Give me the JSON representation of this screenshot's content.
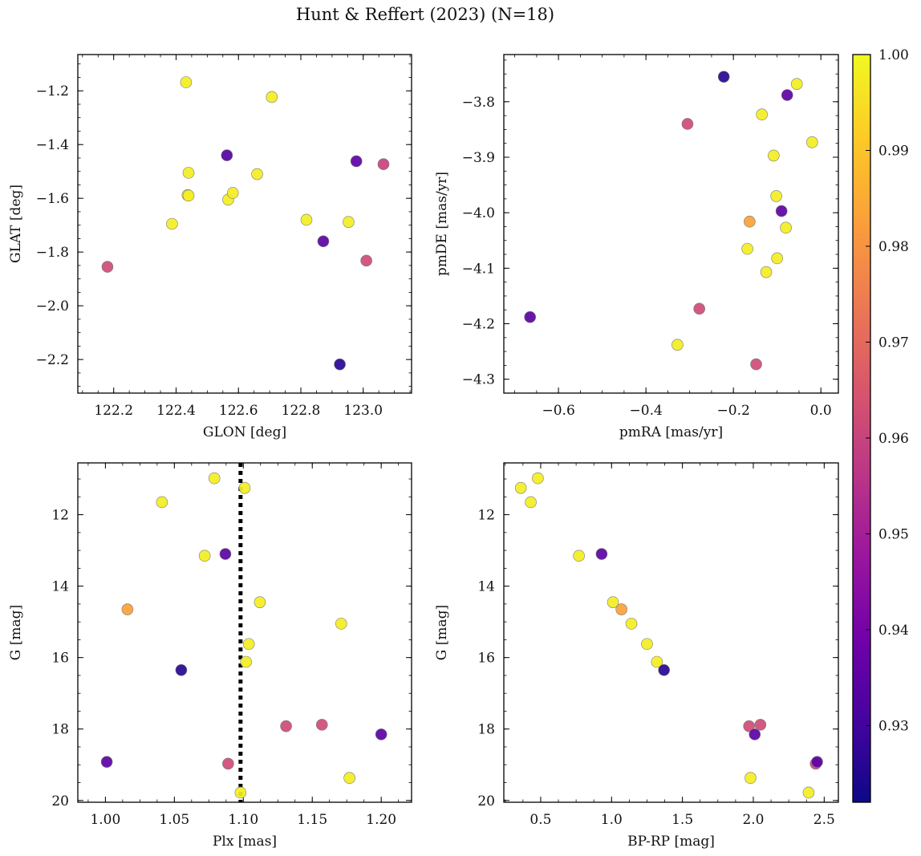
{
  "figure": {
    "title": "Hunt & Reffert (2023) (N=18)"
  },
  "colorbar": {
    "range": [
      0.922,
      1.0
    ],
    "ticks": [
      0.93,
      0.94,
      0.95,
      0.96,
      0.97,
      0.98,
      0.99,
      1.0
    ],
    "tick_labels": [
      "0.93",
      "0.94",
      "0.95",
      "0.96",
      "0.97",
      "0.98",
      "0.99",
      "1.00"
    ],
    "colormap": "plasma",
    "colors": [
      "#0d0887",
      "#46039f",
      "#7201a8",
      "#9c179e",
      "#bd3786",
      "#d8576b",
      "#ed7953",
      "#fb9f3a",
      "#fdca26",
      "#f0f921"
    ]
  },
  "chart_data": [
    {
      "type": "scatter",
      "xlabel": "GLON [deg]",
      "ylabel": "GLAT [deg]",
      "xlim": [
        122.085,
        123.155
      ],
      "ylim": [
        -2.325,
        -1.065
      ],
      "xticks": [
        122.2,
        122.4,
        122.6,
        122.8,
        123.0
      ],
      "xtick_labels": [
        "122.2",
        "122.4",
        "122.6",
        "122.8",
        "123.0"
      ],
      "yticks": [
        -2.2,
        -2.0,
        -1.8,
        -1.6,
        -1.4,
        -1.2
      ],
      "ytick_labels": [
        "−2.2",
        "−2.0",
        "−1.8",
        "−1.6",
        "−1.4",
        "−1.2"
      ],
      "points": [
        {
          "x": 122.18,
          "y": -1.855,
          "c": 0.962
        },
        {
          "x": 122.387,
          "y": -1.695,
          "c": 0.998
        },
        {
          "x": 122.432,
          "y": -1.168,
          "c": 0.998
        },
        {
          "x": 122.437,
          "y": -1.588,
          "c": 0.997
        },
        {
          "x": 122.44,
          "y": -1.505,
          "c": 0.998
        },
        {
          "x": 122.44,
          "y": -1.59,
          "c": 0.998
        },
        {
          "x": 122.563,
          "y": -1.44,
          "c": 0.933
        },
        {
          "x": 122.567,
          "y": -1.605,
          "c": 0.998
        },
        {
          "x": 122.582,
          "y": -1.58,
          "c": 0.998
        },
        {
          "x": 122.66,
          "y": -1.51,
          "c": 0.998
        },
        {
          "x": 122.707,
          "y": -1.223,
          "c": 0.998
        },
        {
          "x": 122.818,
          "y": -1.68,
          "c": 0.998
        },
        {
          "x": 122.872,
          "y": -1.76,
          "c": 0.935
        },
        {
          "x": 122.925,
          "y": -2.218,
          "c": 0.926
        },
        {
          "x": 122.953,
          "y": -1.688,
          "c": 0.998
        },
        {
          "x": 122.978,
          "y": -1.462,
          "c": 0.935
        },
        {
          "x": 123.01,
          "y": -1.832,
          "c": 0.962
        },
        {
          "x": 123.065,
          "y": -1.473,
          "c": 0.96
        }
      ]
    },
    {
      "type": "scatter",
      "xlabel": "pmRA [mas/yr]",
      "ylabel": "pmDE [mas/yr]",
      "xlim": [
        -0.725,
        0.04
      ],
      "ylim": [
        -4.325,
        -3.715
      ],
      "xticks": [
        -0.6,
        -0.4,
        -0.2,
        0.0
      ],
      "xtick_labels": [
        "−0.6",
        "−0.4",
        "−0.2",
        "0.0"
      ],
      "yticks": [
        -4.3,
        -4.2,
        -4.1,
        -4.0,
        -3.9,
        -3.8
      ],
      "ytick_labels": [
        "−4.3",
        "−4.2",
        "−4.1",
        "−4.0",
        "−3.9",
        "−3.8"
      ],
      "points": [
        {
          "x": -0.665,
          "y": -4.188,
          "c": 0.935
        },
        {
          "x": -0.328,
          "y": -4.238,
          "c": 0.998
        },
        {
          "x": -0.305,
          "y": -3.84,
          "c": 0.962
        },
        {
          "x": -0.278,
          "y": -4.173,
          "c": 0.962
        },
        {
          "x": -0.222,
          "y": -3.755,
          "c": 0.926
        },
        {
          "x": -0.168,
          "y": -4.065,
          "c": 0.998
        },
        {
          "x": -0.163,
          "y": -4.016,
          "c": 0.983
        },
        {
          "x": -0.148,
          "y": -4.273,
          "c": 0.962
        },
        {
          "x": -0.135,
          "y": -3.823,
          "c": 0.998
        },
        {
          "x": -0.125,
          "y": -4.107,
          "c": 0.998
        },
        {
          "x": -0.108,
          "y": -3.897,
          "c": 0.998
        },
        {
          "x": -0.102,
          "y": -3.97,
          "c": 0.998
        },
        {
          "x": -0.1,
          "y": -4.082,
          "c": 0.998
        },
        {
          "x": -0.09,
          "y": -3.997,
          "c": 0.935
        },
        {
          "x": -0.08,
          "y": -4.027,
          "c": 0.998
        },
        {
          "x": -0.077,
          "y": -3.788,
          "c": 0.935
        },
        {
          "x": -0.055,
          "y": -3.768,
          "c": 0.998
        },
        {
          "x": -0.02,
          "y": -3.873,
          "c": 0.998
        }
      ]
    },
    {
      "type": "scatter",
      "xlabel": "Plx [mas]",
      "ylabel": "G [mag]",
      "xlim": [
        0.98,
        1.222
      ],
      "ylim": [
        20.05,
        10.55
      ],
      "y_inverted": true,
      "xticks": [
        1.0,
        1.05,
        1.1,
        1.15,
        1.2
      ],
      "xtick_labels": [
        "1.00",
        "1.05",
        "1.10",
        "1.15",
        "1.20"
      ],
      "yticks": [
        12,
        14,
        16,
        18,
        20
      ],
      "ytick_labels": [
        "12",
        "14",
        "16",
        "18",
        "20"
      ],
      "vline": {
        "x": 1.098,
        "style": "dotted",
        "color": "#000000"
      },
      "points": [
        {
          "x": 1.001,
          "y": 18.92,
          "c": 0.935
        },
        {
          "x": 1.016,
          "y": 14.65,
          "c": 0.983
        },
        {
          "x": 1.041,
          "y": 11.65,
          "c": 0.998
        },
        {
          "x": 1.055,
          "y": 16.35,
          "c": 0.926
        },
        {
          "x": 1.072,
          "y": 13.15,
          "c": 0.998
        },
        {
          "x": 1.079,
          "y": 10.98,
          "c": 0.998
        },
        {
          "x": 1.087,
          "y": 13.1,
          "c": 0.935
        },
        {
          "x": 1.089,
          "y": 18.97,
          "c": 0.962
        },
        {
          "x": 1.098,
          "y": 19.78,
          "c": 0.998
        },
        {
          "x": 1.101,
          "y": 11.25,
          "c": 0.998
        },
        {
          "x": 1.102,
          "y": 16.12,
          "c": 0.998
        },
        {
          "x": 1.104,
          "y": 15.62,
          "c": 0.998
        },
        {
          "x": 1.112,
          "y": 14.45,
          "c": 0.998
        },
        {
          "x": 1.131,
          "y": 17.92,
          "c": 0.962
        },
        {
          "x": 1.157,
          "y": 17.88,
          "c": 0.962
        },
        {
          "x": 1.171,
          "y": 15.05,
          "c": 0.998
        },
        {
          "x": 1.177,
          "y": 19.37,
          "c": 0.998
        },
        {
          "x": 1.2,
          "y": 18.15,
          "c": 0.935
        }
      ]
    },
    {
      "type": "scatter",
      "xlabel": "BP-RP [mag]",
      "ylabel": "G [mag]",
      "xlim": [
        0.24,
        2.6
      ],
      "ylim": [
        20.05,
        10.55
      ],
      "y_inverted": true,
      "xticks": [
        0.5,
        1.0,
        1.5,
        2.0,
        2.5
      ],
      "xtick_labels": [
        "0.5",
        "1.0",
        "1.5",
        "2.0",
        "2.5"
      ],
      "yticks": [
        12,
        14,
        16,
        18,
        20
      ],
      "ytick_labels": [
        "12",
        "14",
        "16",
        "18",
        "20"
      ],
      "points": [
        {
          "x": 0.36,
          "y": 11.25,
          "c": 0.998
        },
        {
          "x": 0.43,
          "y": 11.65,
          "c": 0.998
        },
        {
          "x": 0.48,
          "y": 10.98,
          "c": 0.998
        },
        {
          "x": 0.77,
          "y": 13.15,
          "c": 0.998
        },
        {
          "x": 0.93,
          "y": 13.1,
          "c": 0.935
        },
        {
          "x": 1.01,
          "y": 14.45,
          "c": 0.998
        },
        {
          "x": 1.07,
          "y": 14.65,
          "c": 0.983
        },
        {
          "x": 1.14,
          "y": 15.05,
          "c": 0.998
        },
        {
          "x": 1.25,
          "y": 15.62,
          "c": 0.998
        },
        {
          "x": 1.32,
          "y": 16.12,
          "c": 0.998
        },
        {
          "x": 1.37,
          "y": 16.35,
          "c": 0.926
        },
        {
          "x": 1.97,
          "y": 17.92,
          "c": 0.962
        },
        {
          "x": 1.98,
          "y": 19.37,
          "c": 0.998
        },
        {
          "x": 2.01,
          "y": 18.15,
          "c": 0.935
        },
        {
          "x": 2.05,
          "y": 17.88,
          "c": 0.962
        },
        {
          "x": 2.39,
          "y": 19.78,
          "c": 0.998
        },
        {
          "x": 2.44,
          "y": 18.97,
          "c": 0.962
        },
        {
          "x": 2.45,
          "y": 18.92,
          "c": 0.935
        }
      ]
    }
  ]
}
